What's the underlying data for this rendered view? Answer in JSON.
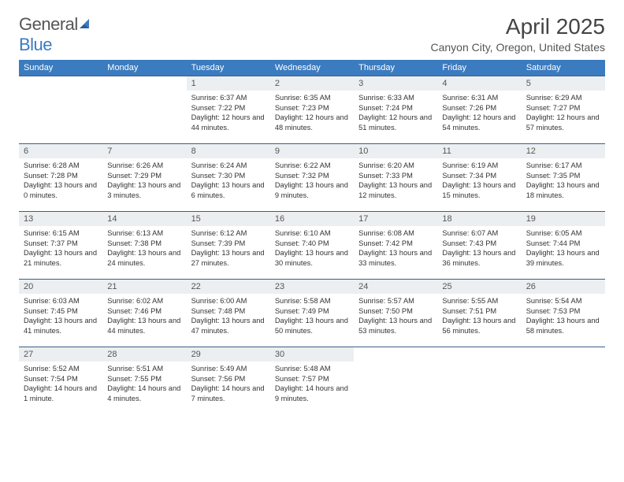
{
  "brand": {
    "word1": "General",
    "word2": "Blue"
  },
  "title": "April 2025",
  "location": "Canyon City, Oregon, United States",
  "colors": {
    "header_bg": "#3b7bbf",
    "header_fg": "#ffffff",
    "daynum_bg": "#eceff1",
    "rule": "#3b5f8a",
    "text": "#333333"
  },
  "weekdays": [
    "Sunday",
    "Monday",
    "Tuesday",
    "Wednesday",
    "Thursday",
    "Friday",
    "Saturday"
  ],
  "weeks": [
    [
      null,
      null,
      {
        "n": "1",
        "sr": "6:37 AM",
        "ss": "7:22 PM",
        "dl": "12 hours and 44 minutes."
      },
      {
        "n": "2",
        "sr": "6:35 AM",
        "ss": "7:23 PM",
        "dl": "12 hours and 48 minutes."
      },
      {
        "n": "3",
        "sr": "6:33 AM",
        "ss": "7:24 PM",
        "dl": "12 hours and 51 minutes."
      },
      {
        "n": "4",
        "sr": "6:31 AM",
        "ss": "7:26 PM",
        "dl": "12 hours and 54 minutes."
      },
      {
        "n": "5",
        "sr": "6:29 AM",
        "ss": "7:27 PM",
        "dl": "12 hours and 57 minutes."
      }
    ],
    [
      {
        "n": "6",
        "sr": "6:28 AM",
        "ss": "7:28 PM",
        "dl": "13 hours and 0 minutes."
      },
      {
        "n": "7",
        "sr": "6:26 AM",
        "ss": "7:29 PM",
        "dl": "13 hours and 3 minutes."
      },
      {
        "n": "8",
        "sr": "6:24 AM",
        "ss": "7:30 PM",
        "dl": "13 hours and 6 minutes."
      },
      {
        "n": "9",
        "sr": "6:22 AM",
        "ss": "7:32 PM",
        "dl": "13 hours and 9 minutes."
      },
      {
        "n": "10",
        "sr": "6:20 AM",
        "ss": "7:33 PM",
        "dl": "13 hours and 12 minutes."
      },
      {
        "n": "11",
        "sr": "6:19 AM",
        "ss": "7:34 PM",
        "dl": "13 hours and 15 minutes."
      },
      {
        "n": "12",
        "sr": "6:17 AM",
        "ss": "7:35 PM",
        "dl": "13 hours and 18 minutes."
      }
    ],
    [
      {
        "n": "13",
        "sr": "6:15 AM",
        "ss": "7:37 PM",
        "dl": "13 hours and 21 minutes."
      },
      {
        "n": "14",
        "sr": "6:13 AM",
        "ss": "7:38 PM",
        "dl": "13 hours and 24 minutes."
      },
      {
        "n": "15",
        "sr": "6:12 AM",
        "ss": "7:39 PM",
        "dl": "13 hours and 27 minutes."
      },
      {
        "n": "16",
        "sr": "6:10 AM",
        "ss": "7:40 PM",
        "dl": "13 hours and 30 minutes."
      },
      {
        "n": "17",
        "sr": "6:08 AM",
        "ss": "7:42 PM",
        "dl": "13 hours and 33 minutes."
      },
      {
        "n": "18",
        "sr": "6:07 AM",
        "ss": "7:43 PM",
        "dl": "13 hours and 36 minutes."
      },
      {
        "n": "19",
        "sr": "6:05 AM",
        "ss": "7:44 PM",
        "dl": "13 hours and 39 minutes."
      }
    ],
    [
      {
        "n": "20",
        "sr": "6:03 AM",
        "ss": "7:45 PM",
        "dl": "13 hours and 41 minutes."
      },
      {
        "n": "21",
        "sr": "6:02 AM",
        "ss": "7:46 PM",
        "dl": "13 hours and 44 minutes."
      },
      {
        "n": "22",
        "sr": "6:00 AM",
        "ss": "7:48 PM",
        "dl": "13 hours and 47 minutes."
      },
      {
        "n": "23",
        "sr": "5:58 AM",
        "ss": "7:49 PM",
        "dl": "13 hours and 50 minutes."
      },
      {
        "n": "24",
        "sr": "5:57 AM",
        "ss": "7:50 PM",
        "dl": "13 hours and 53 minutes."
      },
      {
        "n": "25",
        "sr": "5:55 AM",
        "ss": "7:51 PM",
        "dl": "13 hours and 56 minutes."
      },
      {
        "n": "26",
        "sr": "5:54 AM",
        "ss": "7:53 PM",
        "dl": "13 hours and 58 minutes."
      }
    ],
    [
      {
        "n": "27",
        "sr": "5:52 AM",
        "ss": "7:54 PM",
        "dl": "14 hours and 1 minute."
      },
      {
        "n": "28",
        "sr": "5:51 AM",
        "ss": "7:55 PM",
        "dl": "14 hours and 4 minutes."
      },
      {
        "n": "29",
        "sr": "5:49 AM",
        "ss": "7:56 PM",
        "dl": "14 hours and 7 minutes."
      },
      {
        "n": "30",
        "sr": "5:48 AM",
        "ss": "7:57 PM",
        "dl": "14 hours and 9 minutes."
      },
      null,
      null,
      null
    ]
  ],
  "labels": {
    "sunrise": "Sunrise: ",
    "sunset": "Sunset: ",
    "daylight": "Daylight: "
  }
}
